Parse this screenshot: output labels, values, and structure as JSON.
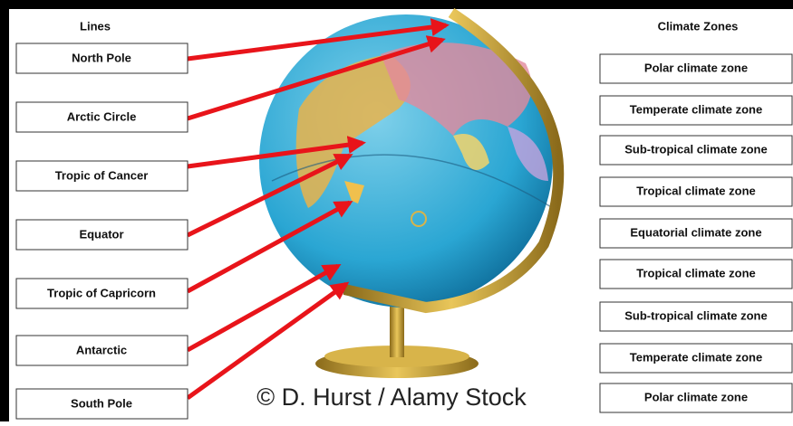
{
  "lines": {
    "heading": "Lines",
    "items": [
      "North Pole",
      "Arctic Circle",
      "Tropic of Cancer",
      "Equator",
      "Tropic of Capricorn",
      "Antarctic",
      "South Pole"
    ]
  },
  "climate_zones": {
    "heading": "Climate Zones",
    "items": [
      "Polar climate zone",
      "Temperate climate zone",
      "Sub-tropical climate zone",
      "Tropical climate zone",
      "Equatorial climate zone",
      "Tropical climate zone",
      "Sub-tropical climate zone",
      "Temperate climate zone",
      "Polar climate zone"
    ]
  },
  "watermark": "© D. Hurst / Alamy Stock"
}
